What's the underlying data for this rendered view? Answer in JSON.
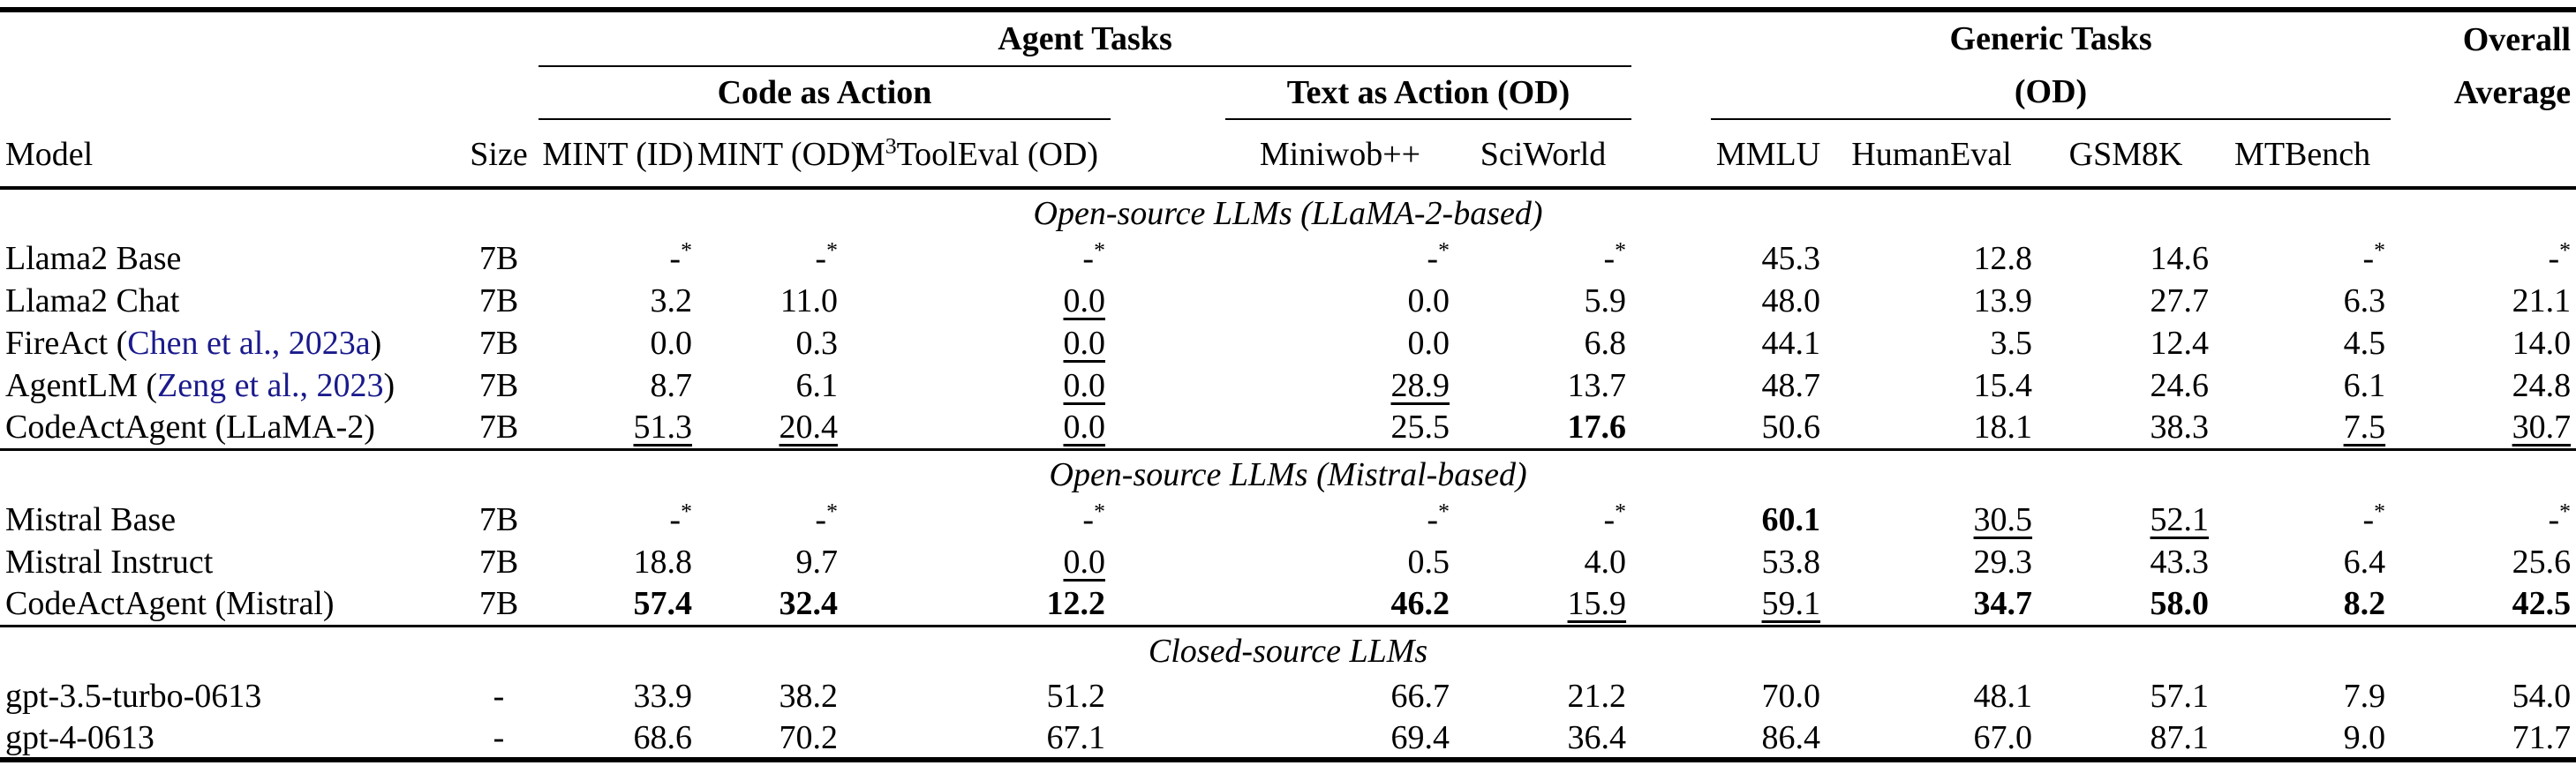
{
  "colors": {
    "background": "#ffffff",
    "text": "#000000",
    "citation_link": "#1a1a8c"
  },
  "header": {
    "model": "Model",
    "size": "Size",
    "agent_tasks": "Agent Tasks",
    "code_as_action": "Code as Action",
    "text_as_action": "Text as Action (OD)",
    "generic_tasks_line1": "Generic Tasks",
    "generic_tasks_line2": "(OD)",
    "overall_line1": "Overall",
    "overall_line2": "Average",
    "benchmarks": {
      "mint_id": "MINT (ID)",
      "mint_od": "MINT (OD)",
      "m3tooleval": {
        "pre": "M",
        "sup": "3",
        "post": "ToolEval (OD)"
      },
      "miniwob": "Miniwob++",
      "sciworld": "SciWorld",
      "mmlu": "MMLU",
      "humaneval": "HumanEval",
      "gsm8k": "GSM8K",
      "mtbench": "MTBench"
    }
  },
  "sections": [
    {
      "title": "Open-source LLMs (LLaMA-2-based)",
      "rows": [
        {
          "model": {
            "text": "Llama2 Base"
          },
          "size": "7B",
          "cells": [
            {
              "v": "-",
              "sup": "*",
              "st": ""
            },
            {
              "v": "-",
              "sup": "*",
              "st": ""
            },
            {
              "v": "-",
              "sup": "*",
              "st": ""
            },
            {
              "v": "-",
              "sup": "*",
              "st": ""
            },
            {
              "v": "-",
              "sup": "*",
              "st": ""
            },
            {
              "v": "45.3",
              "st": ""
            },
            {
              "v": "12.8",
              "st": ""
            },
            {
              "v": "14.6",
              "st": ""
            },
            {
              "v": "-",
              "sup": "*",
              "st": ""
            },
            {
              "v": "-",
              "sup": "*",
              "st": ""
            }
          ]
        },
        {
          "model": {
            "text": "Llama2 Chat"
          },
          "size": "7B",
          "cells": [
            {
              "v": "3.2",
              "st": ""
            },
            {
              "v": "11.0",
              "st": ""
            },
            {
              "v": "0.0",
              "st": "underline"
            },
            {
              "v": "0.0",
              "st": ""
            },
            {
              "v": "5.9",
              "st": ""
            },
            {
              "v": "48.0",
              "st": ""
            },
            {
              "v": "13.9",
              "st": ""
            },
            {
              "v": "27.7",
              "st": ""
            },
            {
              "v": "6.3",
              "st": ""
            },
            {
              "v": "21.1",
              "st": ""
            }
          ]
        },
        {
          "model": {
            "text": "FireAct (",
            "cite": "Chen et al., 2023a",
            "after": ")"
          },
          "size": "7B",
          "cells": [
            {
              "v": "0.0",
              "st": ""
            },
            {
              "v": "0.3",
              "st": ""
            },
            {
              "v": "0.0",
              "st": "underline"
            },
            {
              "v": "0.0",
              "st": ""
            },
            {
              "v": "6.8",
              "st": ""
            },
            {
              "v": "44.1",
              "st": ""
            },
            {
              "v": "3.5",
              "st": ""
            },
            {
              "v": "12.4",
              "st": ""
            },
            {
              "v": "4.5",
              "st": ""
            },
            {
              "v": "14.0",
              "st": ""
            }
          ]
        },
        {
          "model": {
            "text": "AgentLM (",
            "cite": "Zeng et al., 2023",
            "after": ")"
          },
          "size": "7B",
          "cells": [
            {
              "v": "8.7",
              "st": ""
            },
            {
              "v": "6.1",
              "st": ""
            },
            {
              "v": "0.0",
              "st": "underline"
            },
            {
              "v": "28.9",
              "st": "underline"
            },
            {
              "v": "13.7",
              "st": ""
            },
            {
              "v": "48.7",
              "st": ""
            },
            {
              "v": "15.4",
              "st": ""
            },
            {
              "v": "24.6",
              "st": ""
            },
            {
              "v": "6.1",
              "st": ""
            },
            {
              "v": "24.8",
              "st": ""
            }
          ]
        },
        {
          "model": {
            "text": "CodeActAgent (LLaMA-2)"
          },
          "size": "7B",
          "cells": [
            {
              "v": "51.3",
              "st": "underline"
            },
            {
              "v": "20.4",
              "st": "underline"
            },
            {
              "v": "0.0",
              "st": "underline"
            },
            {
              "v": "25.5",
              "st": ""
            },
            {
              "v": "17.6",
              "st": "bold"
            },
            {
              "v": "50.6",
              "st": ""
            },
            {
              "v": "18.1",
              "st": ""
            },
            {
              "v": "38.3",
              "st": ""
            },
            {
              "v": "7.5",
              "st": "underline"
            },
            {
              "v": "30.7",
              "st": "underline"
            }
          ]
        }
      ]
    },
    {
      "title": "Open-source LLMs (Mistral-based)",
      "rows": [
        {
          "model": {
            "text": "Mistral Base"
          },
          "size": "7B",
          "cells": [
            {
              "v": "-",
              "sup": "*",
              "st": ""
            },
            {
              "v": "-",
              "sup": "*",
              "st": ""
            },
            {
              "v": "-",
              "sup": "*",
              "st": ""
            },
            {
              "v": "-",
              "sup": "*",
              "st": ""
            },
            {
              "v": "-",
              "sup": "*",
              "st": ""
            },
            {
              "v": "60.1",
              "st": "bold"
            },
            {
              "v": "30.5",
              "st": "underline"
            },
            {
              "v": "52.1",
              "st": "underline"
            },
            {
              "v": "-",
              "sup": "*",
              "st": ""
            },
            {
              "v": "-",
              "sup": "*",
              "st": ""
            }
          ]
        },
        {
          "model": {
            "text": "Mistral Instruct"
          },
          "size": "7B",
          "cells": [
            {
              "v": "18.8",
              "st": ""
            },
            {
              "v": "9.7",
              "st": ""
            },
            {
              "v": "0.0",
              "st": "underline"
            },
            {
              "v": "0.5",
              "st": ""
            },
            {
              "v": "4.0",
              "st": ""
            },
            {
              "v": "53.8",
              "st": ""
            },
            {
              "v": "29.3",
              "st": ""
            },
            {
              "v": "43.3",
              "st": ""
            },
            {
              "v": "6.4",
              "st": ""
            },
            {
              "v": "25.6",
              "st": ""
            }
          ]
        },
        {
          "model": {
            "text": "CodeActAgent (Mistral)"
          },
          "size": "7B",
          "cells": [
            {
              "v": "57.4",
              "st": "bold"
            },
            {
              "v": "32.4",
              "st": "bold"
            },
            {
              "v": "12.2",
              "st": "bold"
            },
            {
              "v": "46.2",
              "st": "bold"
            },
            {
              "v": "15.9",
              "st": "underline"
            },
            {
              "v": "59.1",
              "st": "underline"
            },
            {
              "v": "34.7",
              "st": "bold"
            },
            {
              "v": "58.0",
              "st": "bold"
            },
            {
              "v": "8.2",
              "st": "bold"
            },
            {
              "v": "42.5",
              "st": "bold"
            }
          ]
        }
      ]
    },
    {
      "title": "Closed-source LLMs",
      "rows": [
        {
          "model": {
            "text": "gpt-3.5-turbo-0613"
          },
          "size": "-",
          "cells": [
            {
              "v": "33.9",
              "st": ""
            },
            {
              "v": "38.2",
              "st": ""
            },
            {
              "v": "51.2",
              "st": ""
            },
            {
              "v": "66.7",
              "st": ""
            },
            {
              "v": "21.2",
              "st": ""
            },
            {
              "v": "70.0",
              "st": ""
            },
            {
              "v": "48.1",
              "st": ""
            },
            {
              "v": "57.1",
              "st": ""
            },
            {
              "v": "7.9",
              "st": ""
            },
            {
              "v": "54.0",
              "st": ""
            }
          ]
        },
        {
          "model": {
            "text": "gpt-4-0613"
          },
          "size": "-",
          "cells": [
            {
              "v": "68.6",
              "st": ""
            },
            {
              "v": "70.2",
              "st": ""
            },
            {
              "v": "67.1",
              "st": ""
            },
            {
              "v": "69.4",
              "st": ""
            },
            {
              "v": "36.4",
              "st": ""
            },
            {
              "v": "86.4",
              "st": ""
            },
            {
              "v": "67.0",
              "st": ""
            },
            {
              "v": "87.1",
              "st": ""
            },
            {
              "v": "9.0",
              "st": ""
            },
            {
              "v": "71.7",
              "st": ""
            }
          ]
        }
      ]
    }
  ]
}
